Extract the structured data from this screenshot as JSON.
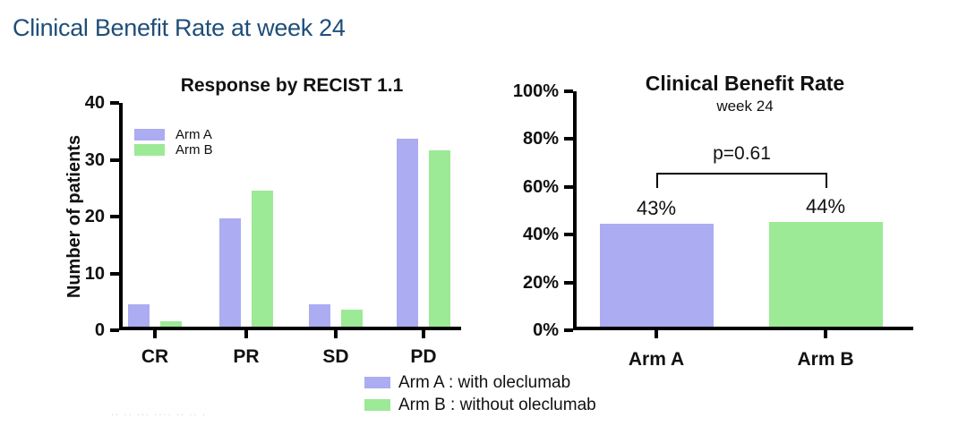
{
  "page": {
    "title": "Clinical Benefit Rate at week 24",
    "title_color": "#1f4e79",
    "background": "#ffffff"
  },
  "colors": {
    "arm_a": "#acacf2",
    "arm_b": "#9ce996",
    "axis": "#000000"
  },
  "chart_data": [
    {
      "type": "bar",
      "title": "Response by RECIST 1.1",
      "xlabel": "",
      "ylabel": "Number of patients",
      "categories": [
        "CR",
        "PR",
        "SD",
        "PD"
      ],
      "series": [
        {
          "name": "Arm A",
          "values": [
            4,
            19,
            4,
            33
          ]
        },
        {
          "name": "Arm B",
          "values": [
            1,
            24,
            3,
            31
          ]
        }
      ],
      "ylim": [
        0,
        40
      ],
      "yticks": [
        0,
        10,
        20,
        30,
        40
      ],
      "grid": false,
      "legend_position": "inside-top-left"
    },
    {
      "type": "bar",
      "title": "Clinical Benefit Rate",
      "subtitle": "week 24",
      "categories": [
        "Arm A",
        "Arm B"
      ],
      "values": [
        43,
        44
      ],
      "bar_labels": [
        "43%",
        "44%"
      ],
      "annotation": "p=0.61",
      "ylim": [
        0,
        100
      ],
      "yticks": [
        0,
        20,
        40,
        60,
        80,
        100
      ],
      "ytick_labels": [
        "0%",
        "20%",
        "40%",
        "60%",
        "80%",
        "100%"
      ],
      "grid": false,
      "legend_position": "none"
    }
  ],
  "bottom_legend": {
    "items": [
      {
        "series": "arm_a",
        "label": "Arm A : with oleclumab"
      },
      {
        "series": "arm_b",
        "label": "Arm B : without oleclumab"
      }
    ]
  },
  "footer": {
    "watermark": "·· ·· ··· ···· ·· ·· ·"
  }
}
